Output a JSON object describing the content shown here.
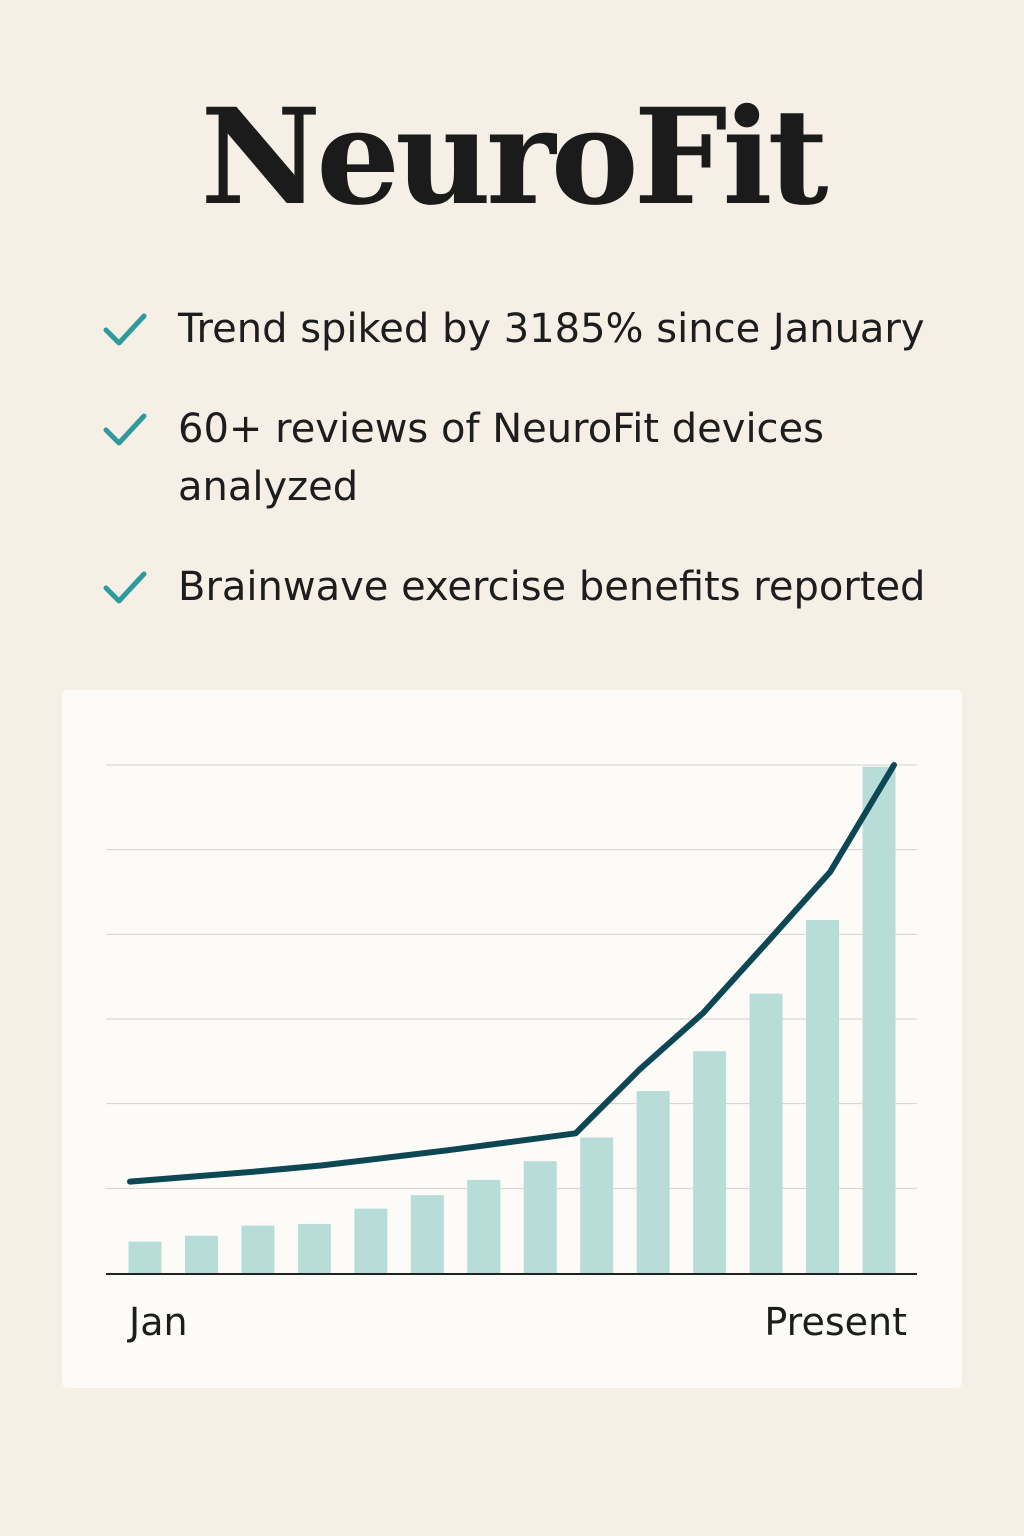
{
  "header": {
    "title": "NeuroFit"
  },
  "bullets": [
    {
      "icon": "check-icon",
      "text": "Trend spiked by 3185% since January"
    },
    {
      "icon": "check-icon",
      "text": "60+ reviews of NeuroFit devices analyzed"
    },
    {
      "icon": "check-icon",
      "text": "Brainwave exercise benefits reported"
    }
  ],
  "colors": {
    "background": "#f6efe6",
    "card": "#fdfbf8",
    "check": "#2f9a9c",
    "bar": "#b8ddd9",
    "line": "#0d4754",
    "grid": "#d2d2d2",
    "axis": "#222222"
  },
  "chart_data": {
    "type": "bar",
    "title": "",
    "xlabel": "",
    "ylabel": "",
    "x_tick_labels": [
      "Jan",
      "Present"
    ],
    "ylim": [
      0,
      6
    ],
    "grid": true,
    "legend": "none",
    "series": [
      {
        "type": "bar",
        "values": [
          0.37,
          0.44,
          0.56,
          0.58,
          0.76,
          0.92,
          1.1,
          1.32,
          1.6,
          2.15,
          2.62,
          3.3,
          4.17,
          5.98
        ]
      },
      {
        "type": "line",
        "values": [
          1.08,
          1.14,
          1.2,
          1.27,
          1.36,
          1.45,
          1.55,
          1.65,
          2.4,
          3.07,
          3.9,
          4.74,
          6.0
        ]
      }
    ]
  }
}
